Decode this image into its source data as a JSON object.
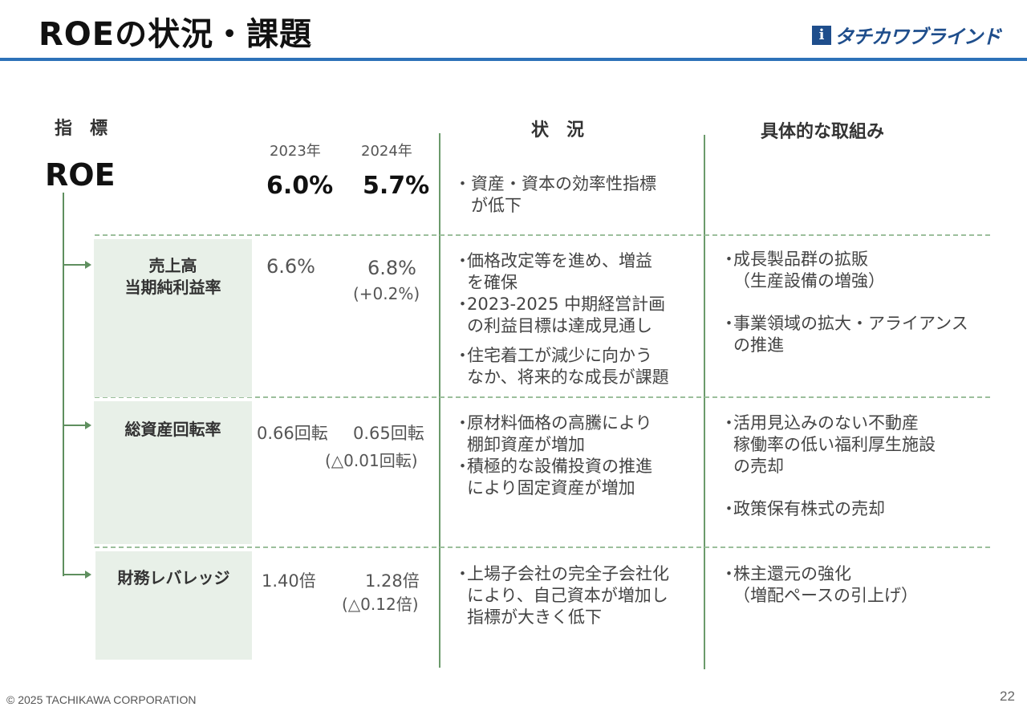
{
  "title": "ROEの状況・課題",
  "logo": {
    "mark": "i",
    "text": "タチカワブラインド"
  },
  "headers": {
    "indicator": "指　標",
    "status": "状　況",
    "actions": "具体的な取組み"
  },
  "years": {
    "y1": "2023年",
    "y2": "2024年"
  },
  "roe": {
    "label": "ROE",
    "v2023": "6.0%",
    "v2024": "5.7%",
    "status": [
      "・資産・資本の効率性指標",
      "　が低下"
    ]
  },
  "rows": [
    {
      "name_lines": [
        "売上高",
        "当期純利益率"
      ],
      "v2023": "6.6%",
      "v2024": "6.8%",
      "diff": "(+0.2%)",
      "status": [
        [
          "・",
          "価格改定等を進め、増益",
          "を確保"
        ],
        [
          "・",
          "2023-2025 中期経営計画",
          "の利益目標は達成見通し"
        ],
        [
          "・",
          "住宅着工が減少に向かう",
          "なか、将来的な成長が課題"
        ]
      ],
      "actions": [
        [
          "・",
          "成長製品群の拡販",
          "（生産設備の増強）"
        ],
        [
          "・",
          "事業領域の拡大・アライアンス",
          "の推進"
        ]
      ]
    },
    {
      "name_lines": [
        "総資産回転率"
      ],
      "v2023": "0.66回転",
      "v2024": "0.65回転",
      "diff": "(△0.01回転)",
      "status": [
        [
          "・",
          "原材料価格の高騰により",
          "棚卸資産が増加"
        ],
        [
          "・",
          "積極的な設備投資の推進",
          "により固定資産が増加"
        ]
      ],
      "actions": [
        [
          "・",
          "活用見込みのない不動産",
          "稼働率の低い福利厚生施設",
          "の売却"
        ],
        [
          "・",
          "政策保有株式の売却"
        ]
      ]
    },
    {
      "name_lines": [
        "財務レバレッジ"
      ],
      "v2023": "1.40倍",
      "v2024": "1.28倍",
      "diff": "(△0.12倍)",
      "status": [
        [
          "・",
          "上場子会社の完全子会社化",
          "により、自己資本が増加し",
          "指標が大きく低下"
        ]
      ],
      "actions": [
        [
          "・",
          "株主還元の強化",
          "（増配ペースの引上げ）"
        ]
      ]
    }
  ],
  "footer": "© 2025 TACHIKAWA CORPORATION",
  "page_number": "22"
}
